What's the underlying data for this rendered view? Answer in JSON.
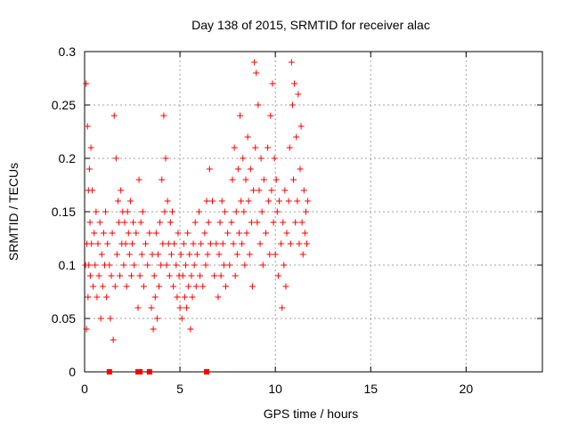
{
  "chart_data": {
    "type": "scatter",
    "title": "Day 138 of 2015, SRMTID for receiver alac",
    "xlabel": "GPS time / hours",
    "ylabel": "SRMTID / TECUs",
    "xlim": [
      0,
      24
    ],
    "ylim": [
      0,
      0.3
    ],
    "xticks": [
      0,
      5,
      10,
      15,
      20
    ],
    "xtick_labels": [
      "0",
      "5",
      "10",
      "15",
      "20"
    ],
    "yticks": [
      0,
      0.05,
      0.1,
      0.15,
      0.2,
      0.25,
      0.3
    ],
    "ytick_labels": [
      "0",
      "0.05",
      "0.1",
      "0.15",
      "0.2",
      "0.25",
      "0.3"
    ],
    "grid": true,
    "marker": "+",
    "colors": {
      "points": "#ff0000",
      "grid": "#a0a0a0",
      "axes": "#000000"
    },
    "series": [
      {
        "points": [
          [
            0.05,
            0.1
          ],
          [
            0.08,
            0.27
          ],
          [
            0.1,
            0.04
          ],
          [
            0.12,
            0.12
          ],
          [
            0.15,
            0.23
          ],
          [
            0.18,
            0.07
          ],
          [
            0.2,
            0.17
          ],
          [
            0.22,
            0.1
          ],
          [
            0.25,
            0.19
          ],
          [
            0.28,
            0.14
          ],
          [
            0.3,
            0.09
          ],
          [
            0.33,
            0.21
          ],
          [
            0.36,
            0.12
          ],
          [
            0.4,
            0.17
          ],
          [
            0.45,
            0.08
          ],
          [
            0.5,
            0.13
          ],
          [
            0.55,
            0.1
          ],
          [
            0.6,
            0.15
          ],
          [
            0.65,
            0.07
          ],
          [
            0.7,
            0.12
          ],
          [
            0.75,
            0.09
          ],
          [
            0.8,
            0.14
          ],
          [
            0.85,
            0.05
          ],
          [
            0.9,
            0.11
          ],
          [
            0.95,
            0.08
          ],
          [
            1.0,
            0.13
          ],
          [
            1.05,
            0.1
          ],
          [
            1.1,
            0.15
          ],
          [
            1.15,
            0.07
          ],
          [
            1.2,
            0.12
          ],
          [
            1.3,
            0.1
          ],
          [
            1.35,
            0.05
          ],
          [
            1.4,
            0.09
          ],
          [
            1.45,
            0.13
          ],
          [
            1.5,
            0.03
          ],
          [
            1.55,
            0.24
          ],
          [
            1.6,
            0.08
          ],
          [
            1.65,
            0.2
          ],
          [
            1.7,
            0.11
          ],
          [
            1.75,
            0.16
          ],
          [
            1.8,
            0.14
          ],
          [
            1.85,
            0.09
          ],
          [
            1.9,
            0.17
          ],
          [
            1.95,
            0.12
          ],
          [
            2.0,
            0.15
          ],
          [
            2.05,
            0.1
          ],
          [
            2.1,
            0.14
          ],
          [
            2.15,
            0.12
          ],
          [
            2.2,
            0.08
          ],
          [
            2.25,
            0.15
          ],
          [
            2.3,
            0.13
          ],
          [
            2.35,
            0.11
          ],
          [
            2.4,
            0.16
          ],
          [
            2.45,
            0.09
          ],
          [
            2.5,
            0.12
          ],
          [
            2.55,
            0.14
          ],
          [
            2.6,
            0.1
          ],
          [
            2.7,
            0.13
          ],
          [
            2.8,
            0.06
          ],
          [
            2.85,
            0.18
          ],
          [
            2.9,
            0.09
          ],
          [
            2.95,
            0.14
          ],
          [
            3.0,
            0.11
          ],
          [
            3.05,
            0.15
          ],
          [
            3.1,
            0.08
          ],
          [
            3.2,
            0.12
          ],
          [
            3.3,
            0.1
          ],
          [
            3.4,
            0.13
          ],
          [
            3.5,
            0.06
          ],
          [
            3.55,
            0.11
          ],
          [
            3.6,
            0.04
          ],
          [
            3.65,
            0.09
          ],
          [
            3.7,
            0.07
          ],
          [
            3.75,
            0.13
          ],
          [
            3.8,
            0.05
          ],
          [
            3.85,
            0.11
          ],
          [
            3.9,
            0.08
          ],
          [
            3.95,
            0.14
          ],
          [
            4.0,
            0.1
          ],
          [
            4.05,
            0.18
          ],
          [
            4.1,
            0.12
          ],
          [
            4.15,
            0.24
          ],
          [
            4.2,
            0.15
          ],
          [
            4.25,
            0.2
          ],
          [
            4.3,
            0.1
          ],
          [
            4.35,
            0.16
          ],
          [
            4.4,
            0.12
          ],
          [
            4.45,
            0.09
          ],
          [
            4.5,
            0.14
          ],
          [
            4.55,
            0.11
          ],
          [
            4.6,
            0.15
          ],
          [
            4.65,
            0.08
          ],
          [
            4.7,
            0.12
          ],
          [
            4.8,
            0.1
          ],
          [
            4.85,
            0.07
          ],
          [
            4.9,
            0.13
          ],
          [
            4.95,
            0.09
          ],
          [
            5.0,
            0.06
          ],
          [
            5.05,
            0.11
          ],
          [
            5.1,
            0.05
          ],
          [
            5.15,
            0.09
          ],
          [
            5.2,
            0.12
          ],
          [
            5.25,
            0.07
          ],
          [
            5.3,
            0.1
          ],
          [
            5.35,
            0.06
          ],
          [
            5.4,
            0.13
          ],
          [
            5.45,
            0.08
          ],
          [
            5.5,
            0.11
          ],
          [
            5.55,
            0.04
          ],
          [
            5.6,
            0.09
          ],
          [
            5.65,
            0.07
          ],
          [
            5.7,
            0.12
          ],
          [
            5.75,
            0.1
          ],
          [
            5.8,
            0.14
          ],
          [
            5.85,
            0.08
          ],
          [
            5.9,
            0.11
          ],
          [
            6.0,
            0.15
          ],
          [
            6.05,
            0.09
          ],
          [
            6.1,
            0.12
          ],
          [
            6.2,
            0.08
          ],
          [
            6.3,
            0.13
          ],
          [
            6.35,
            0.1
          ],
          [
            6.4,
            0.16
          ],
          [
            6.45,
            0.11
          ],
          [
            6.5,
            0.14
          ],
          [
            6.55,
            0.19
          ],
          [
            6.6,
            0.12
          ],
          [
            6.7,
            0.16
          ],
          [
            6.8,
            0.09
          ],
          [
            6.9,
            0.12
          ],
          [
            7.0,
            0.07
          ],
          [
            7.05,
            0.11
          ],
          [
            7.1,
            0.14
          ],
          [
            7.15,
            0.09
          ],
          [
            7.2,
            0.16
          ],
          [
            7.25,
            0.12
          ],
          [
            7.3,
            0.1
          ],
          [
            7.35,
            0.15
          ],
          [
            7.4,
            0.08
          ],
          [
            7.5,
            0.13
          ],
          [
            7.6,
            0.1
          ],
          [
            7.7,
            0.14
          ],
          [
            7.75,
            0.18
          ],
          [
            7.8,
            0.12
          ],
          [
            7.85,
            0.21
          ],
          [
            7.9,
            0.09
          ],
          [
            7.95,
            0.15
          ],
          [
            8.0,
            0.11
          ],
          [
            8.05,
            0.19
          ],
          [
            8.1,
            0.13
          ],
          [
            8.15,
            0.24
          ],
          [
            8.2,
            0.16
          ],
          [
            8.25,
            0.12
          ],
          [
            8.3,
            0.2
          ],
          [
            8.35,
            0.15
          ],
          [
            8.4,
            0.1
          ],
          [
            8.45,
            0.18
          ],
          [
            8.5,
            0.13
          ],
          [
            8.55,
            0.22
          ],
          [
            8.6,
            0.16
          ],
          [
            8.65,
            0.11
          ],
          [
            8.7,
            0.19
          ],
          [
            8.75,
            0.14
          ],
          [
            8.8,
            0.08
          ],
          [
            8.85,
            0.17
          ],
          [
            8.9,
            0.29
          ],
          [
            8.95,
            0.21
          ],
          [
            9.0,
            0.28
          ],
          [
            9.05,
            0.14
          ],
          [
            9.1,
            0.25
          ],
          [
            9.15,
            0.17
          ],
          [
            9.2,
            0.12
          ],
          [
            9.25,
            0.2
          ],
          [
            9.3,
            0.15
          ],
          [
            9.35,
            0.1
          ],
          [
            9.4,
            0.18
          ],
          [
            9.5,
            0.13
          ],
          [
            9.6,
            0.21
          ],
          [
            9.65,
            0.16
          ],
          [
            9.7,
            0.11
          ],
          [
            9.75,
            0.24
          ],
          [
            9.8,
            0.17
          ],
          [
            9.85,
            0.27
          ],
          [
            9.9,
            0.14
          ],
          [
            9.95,
            0.2
          ],
          [
            10.0,
            0.11
          ],
          [
            10.05,
            0.18
          ],
          [
            10.1,
            0.15
          ],
          [
            10.15,
            0.09
          ],
          [
            10.2,
            0.16
          ],
          [
            10.3,
            0.12
          ],
          [
            10.35,
            0.06
          ],
          [
            10.4,
            0.14
          ],
          [
            10.45,
            0.1
          ],
          [
            10.5,
            0.17
          ],
          [
            10.55,
            0.08
          ],
          [
            10.6,
            0.13
          ],
          [
            10.7,
            0.16
          ],
          [
            10.75,
            0.21
          ],
          [
            10.8,
            0.12
          ],
          [
            10.85,
            0.29
          ],
          [
            10.9,
            0.25
          ],
          [
            10.95,
            0.18
          ],
          [
            11.0,
            0.27
          ],
          [
            11.05,
            0.14
          ],
          [
            11.1,
            0.22
          ],
          [
            11.15,
            0.16
          ],
          [
            11.2,
            0.26
          ],
          [
            11.25,
            0.12
          ],
          [
            11.3,
            0.19
          ],
          [
            11.35,
            0.23
          ],
          [
            11.4,
            0.14
          ],
          [
            11.45,
            0.11
          ],
          [
            11.5,
            0.17
          ],
          [
            11.55,
            0.13
          ],
          [
            11.6,
            0.15
          ],
          [
            11.65,
            0.12
          ],
          [
            11.7,
            0.16
          ]
        ]
      }
    ],
    "zero_marks_x": [
      1.3,
      2.8,
      2.9,
      3.4,
      6.4
    ]
  }
}
